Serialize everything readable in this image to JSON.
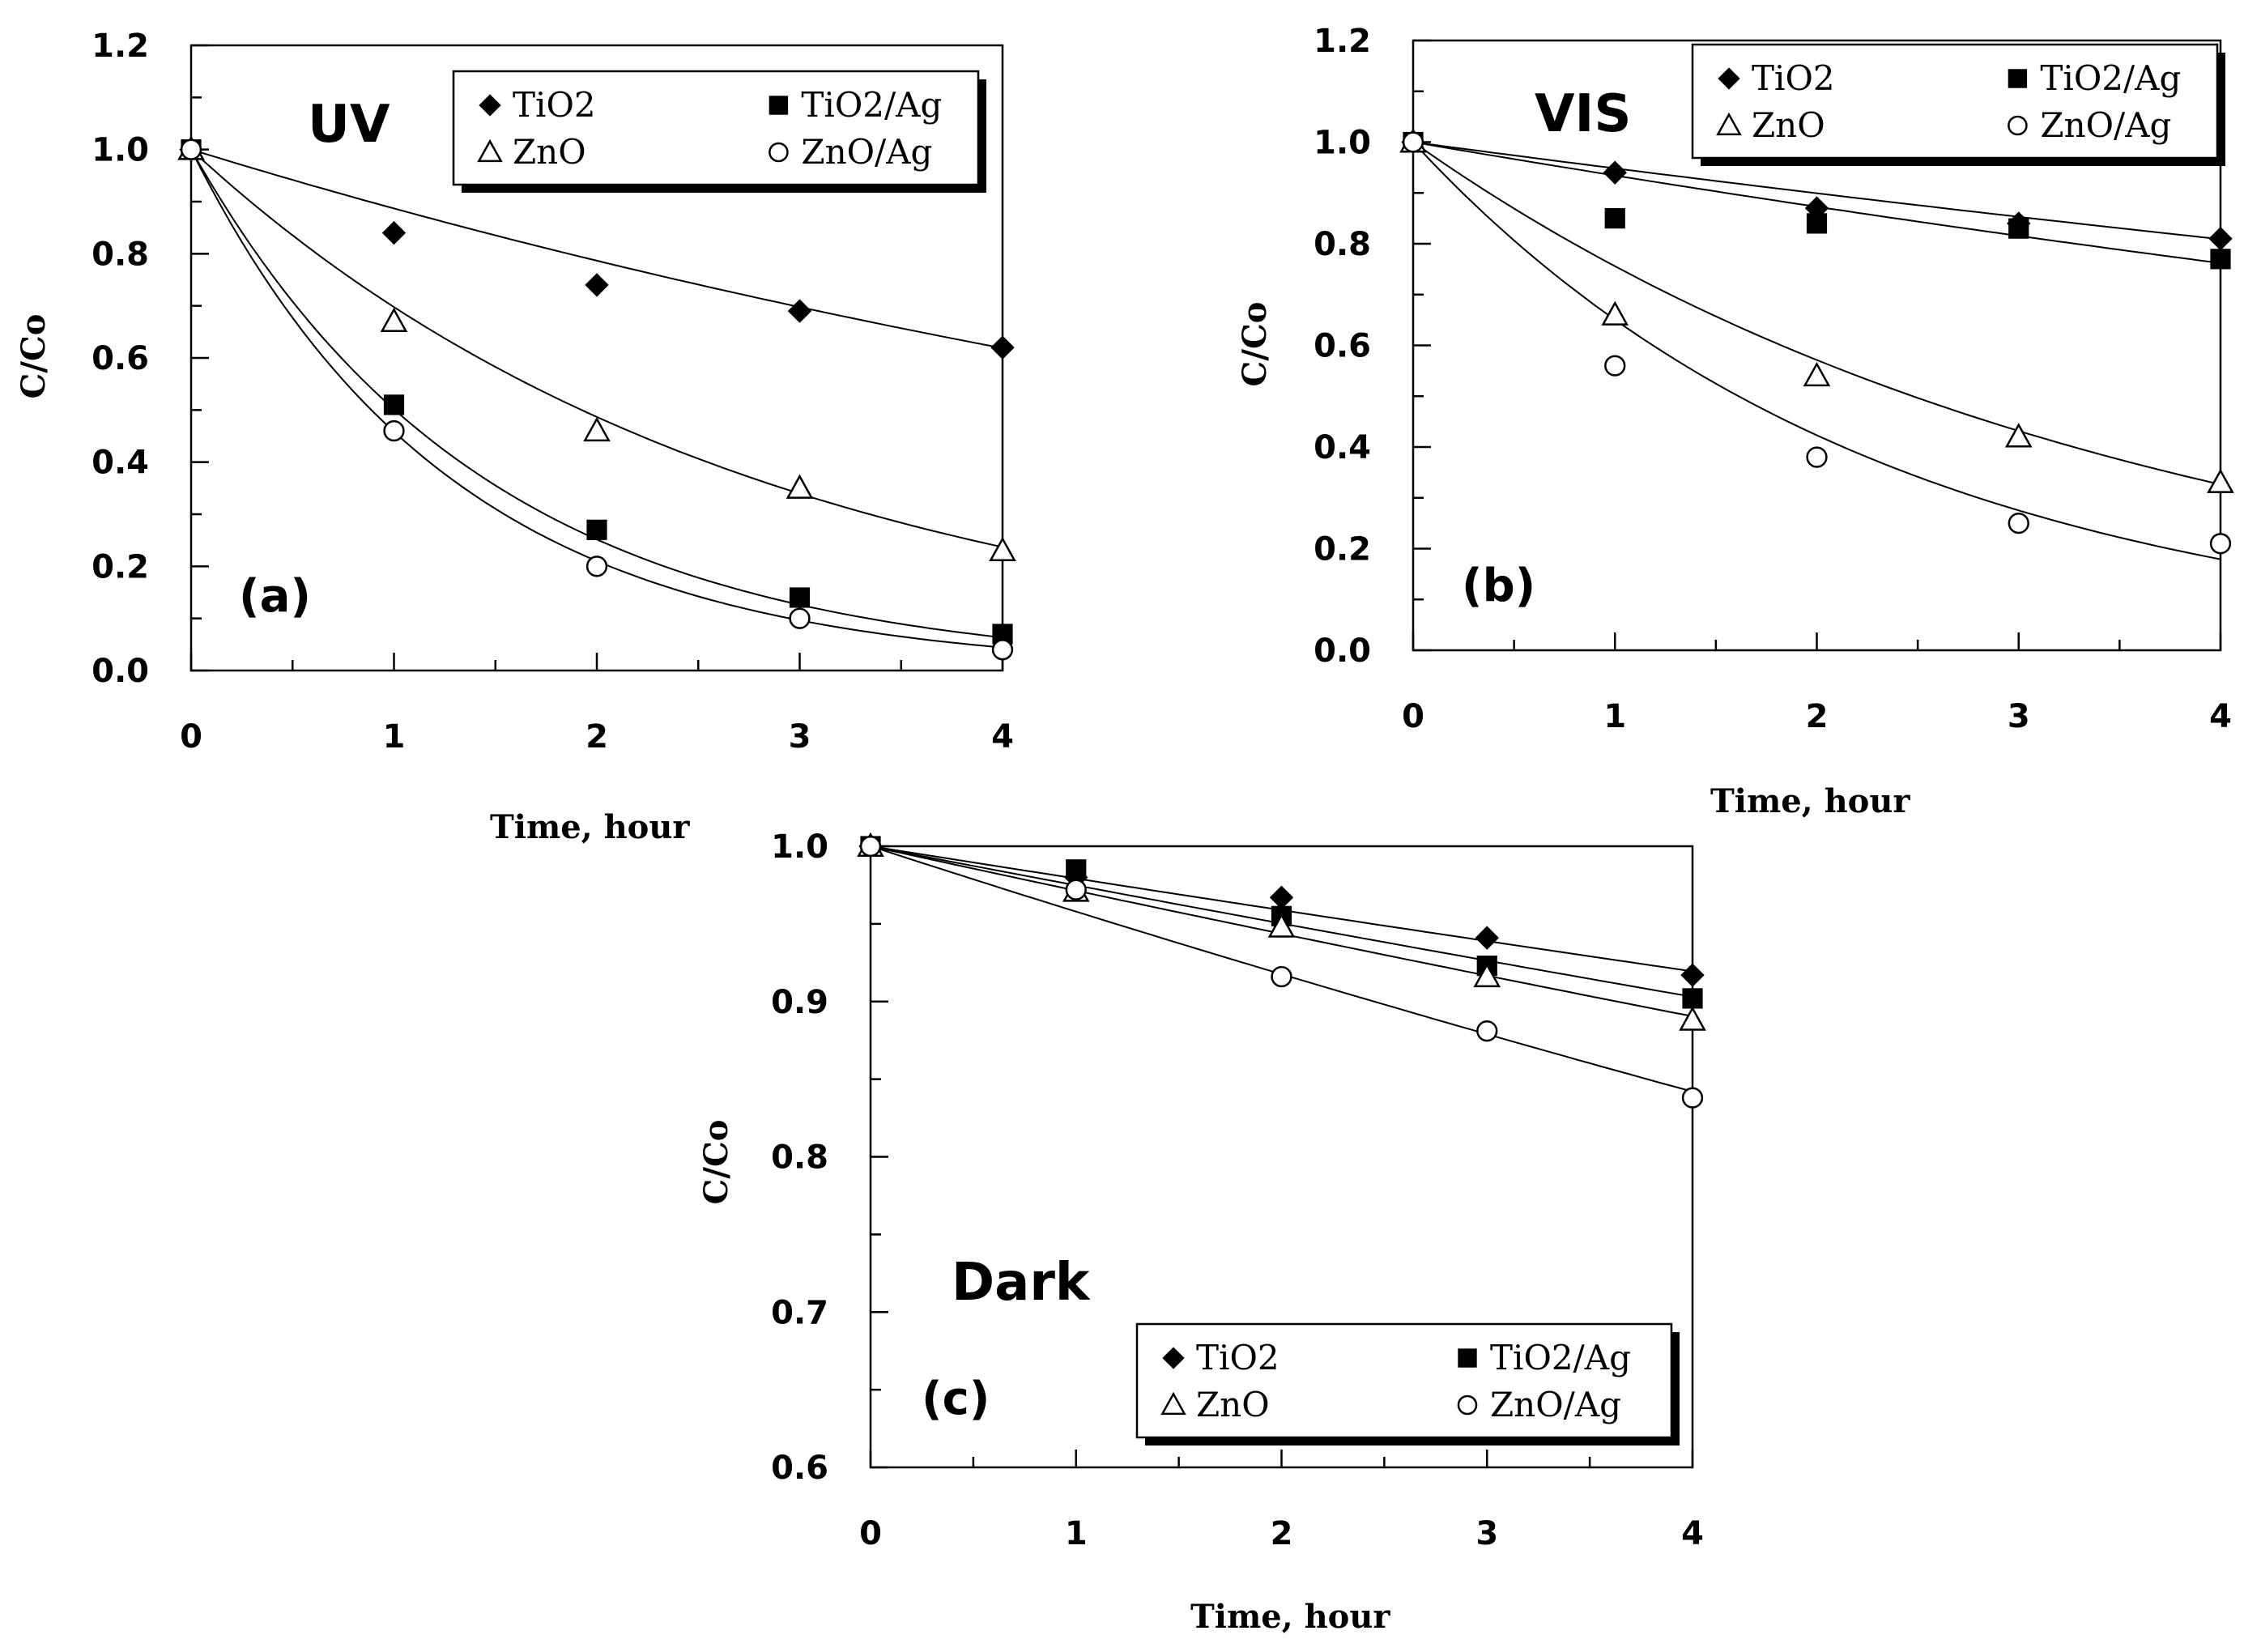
{
  "chart_data": [
    {
      "type": "scatter",
      "panel": "(a)",
      "title": "UV",
      "xlabel": "Time, hour",
      "ylabel": "C/Co",
      "xlim": [
        0,
        4
      ],
      "ylim": [
        0,
        1.2
      ],
      "xticks": [
        "0",
        "1",
        "2",
        "3",
        "4"
      ],
      "yticks": [
        "0.0",
        "0.2",
        "0.4",
        "0.6",
        "0.8",
        "1.0",
        "1.2"
      ],
      "fit_lines": true,
      "legend_position": "top-right",
      "series": [
        {
          "name": "TiO2",
          "marker": "diamond-filled",
          "x": [
            0,
            1,
            2,
            3,
            4
          ],
          "y": [
            1.0,
            0.84,
            0.74,
            0.69,
            0.62
          ],
          "fit_k": 0.12
        },
        {
          "name": "TiO2/Ag",
          "marker": "square-filled",
          "x": [
            0,
            1,
            2,
            3,
            4
          ],
          "y": [
            1.0,
            0.51,
            0.27,
            0.14,
            0.07
          ],
          "fit_k": 0.69
        },
        {
          "name": "ZnO",
          "marker": "triangle-open",
          "x": [
            0,
            1,
            2,
            3,
            4
          ],
          "y": [
            1.0,
            0.67,
            0.46,
            0.35,
            0.23
          ],
          "fit_k": 0.36
        },
        {
          "name": "ZnO/Ag",
          "marker": "circle-open",
          "x": [
            0,
            1,
            2,
            3,
            4
          ],
          "y": [
            1.0,
            0.46,
            0.2,
            0.1,
            0.04
          ],
          "fit_k": 0.78
        }
      ]
    },
    {
      "type": "scatter",
      "panel": "(b)",
      "title": "VIS",
      "xlabel": "Time, hour",
      "ylabel": "C/Co",
      "xlim": [
        0,
        4
      ],
      "ylim": [
        0,
        1.2
      ],
      "xticks": [
        "0",
        "1",
        "2",
        "3",
        "4"
      ],
      "yticks": [
        "0.0",
        "0.2",
        "0.4",
        "0.6",
        "0.8",
        "1.0",
        "1.2"
      ],
      "fit_lines": true,
      "legend_position": "top-right",
      "series": [
        {
          "name": "TiO2",
          "marker": "diamond-filled",
          "x": [
            0,
            1,
            2,
            3,
            4
          ],
          "y": [
            1.0,
            0.94,
            0.87,
            0.84,
            0.81
          ],
          "fit_k": 0.053
        },
        {
          "name": "TiO2/Ag",
          "marker": "square-filled",
          "x": [
            0,
            1,
            2,
            3,
            4
          ],
          "y": [
            1.0,
            0.85,
            0.84,
            0.83,
            0.77
          ],
          "fit_k": 0.068
        },
        {
          "name": "ZnO",
          "marker": "triangle-open",
          "x": [
            0,
            1,
            2,
            3,
            4
          ],
          "y": [
            1.0,
            0.66,
            0.54,
            0.42,
            0.33
          ],
          "fit_k": 0.28
        },
        {
          "name": "ZnO/Ag",
          "marker": "circle-open",
          "x": [
            0,
            1,
            2,
            3,
            4
          ],
          "y": [
            1.0,
            0.56,
            0.38,
            0.25,
            0.21
          ],
          "fit_k": 0.43
        }
      ]
    },
    {
      "type": "scatter",
      "panel": "(c)",
      "title": "Dark",
      "xlabel": "Time, hour",
      "ylabel": "C/Co",
      "xlim": [
        0,
        4
      ],
      "ylim": [
        0.6,
        1.0
      ],
      "xticks": [
        "0",
        "1",
        "2",
        "3",
        "4"
      ],
      "yticks": [
        "0.6",
        "0.7",
        "0.8",
        "0.9",
        "1.0"
      ],
      "fit_lines": true,
      "legend_position": "bottom-right",
      "series": [
        {
          "name": "TiO2",
          "marker": "diamond-filled",
          "x": [
            0,
            1,
            2,
            3,
            4
          ],
          "y": [
            1.0,
            0.98,
            0.967,
            0.941,
            0.917
          ],
          "fit_k": 0.021
        },
        {
          "name": "TiO2/Ag",
          "marker": "square-filled",
          "x": [
            0,
            1,
            2,
            3,
            4
          ],
          "y": [
            1.0,
            0.985,
            0.955,
            0.923,
            0.902
          ],
          "fit_k": 0.0255
        },
        {
          "name": "ZnO",
          "marker": "triangle-open",
          "x": [
            0,
            1,
            2,
            3,
            4
          ],
          "y": [
            1.0,
            0.971,
            0.948,
            0.916,
            0.888
          ],
          "fit_k": 0.029
        },
        {
          "name": "ZnO/Ag",
          "marker": "circle-open",
          "x": [
            0,
            1,
            2,
            3,
            4
          ],
          "y": [
            1.0,
            0.972,
            0.916,
            0.881,
            0.838
          ],
          "fit_k": 0.043
        }
      ]
    }
  ]
}
